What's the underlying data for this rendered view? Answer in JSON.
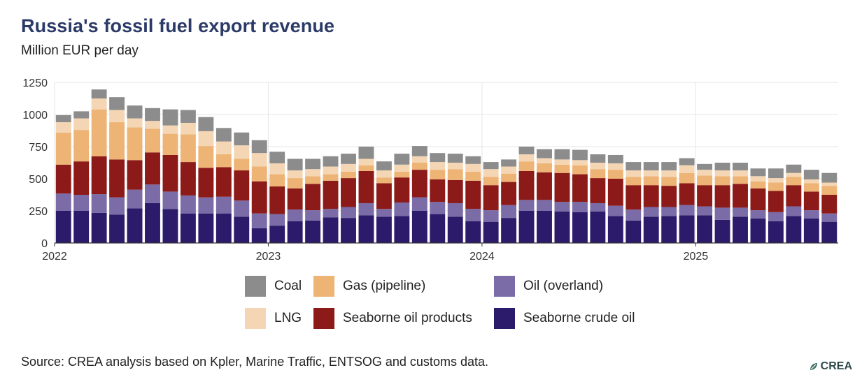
{
  "title": "Russia's fossil fuel export revenue",
  "subtitle": "Million EUR per day",
  "source": "Source: CREA analysis based on Kpler, Marine Traffic, ENTSOG and customs data.",
  "logo_text": "CREA",
  "colors": {
    "coal": "#8c8c8c",
    "lng": "#f5d6b4",
    "gas_pipeline": "#edb476",
    "seaborne_oil_products": "#8b1a18",
    "oil_overland": "#7b6ba6",
    "seaborne_crude_oil": "#2c1a6b",
    "grid": "#e6e6e6",
    "axis": "#333333",
    "title": "#2b3a67"
  },
  "legend": [
    {
      "key": "coal",
      "label": "Coal",
      "color": "#8c8c8c"
    },
    {
      "key": "gas_pipeline",
      "label": "Gas (pipeline)",
      "color": "#edb476"
    },
    {
      "key": "oil_overland",
      "label": "Oil (overland)",
      "color": "#7b6ba6"
    },
    {
      "key": "lng",
      "label": "LNG",
      "color": "#f5d6b4"
    },
    {
      "key": "seaborne_oil_products",
      "label": "Seaborne oil products",
      "color": "#8b1a18"
    },
    {
      "key": "seaborne_crude_oil",
      "label": "Seaborne crude oil",
      "color": "#2c1a6b"
    }
  ],
  "chart_data": {
    "type": "bar",
    "stacked": true,
    "title": "Russia's fossil fuel export revenue",
    "ylabel": "Million EUR per day",
    "ylim": [
      0,
      1250
    ],
    "yticks": [
      0,
      250,
      500,
      750,
      1000,
      1250
    ],
    "xtick_labels": [
      "2022",
      "2023",
      "2024",
      "2025"
    ],
    "xtick_category_index": [
      0,
      12,
      24,
      36
    ],
    "grid": true,
    "legend_position": "bottom",
    "categories": [
      "2022-01",
      "2022-02",
      "2022-03",
      "2022-04",
      "2022-05",
      "2022-06",
      "2022-07",
      "2022-08",
      "2022-09",
      "2022-10",
      "2022-11",
      "2022-12",
      "2023-01",
      "2023-02",
      "2023-03",
      "2023-04",
      "2023-05",
      "2023-06",
      "2023-07",
      "2023-08",
      "2023-09",
      "2023-10",
      "2023-11",
      "2023-12",
      "2024-01",
      "2024-02",
      "2024-03",
      "2024-04",
      "2024-05",
      "2024-06",
      "2024-07",
      "2024-08",
      "2024-09",
      "2024-10",
      "2024-11",
      "2024-12",
      "2025-01",
      "2025-02",
      "2025-03",
      "2025-04",
      "2025-05",
      "2025-06",
      "2025-07",
      "2025-08"
    ],
    "series": [
      {
        "name": "Seaborne crude oil",
        "key": "seaborne_crude_oil",
        "values": [
          250,
          250,
          235,
          220,
          270,
          310,
          265,
          230,
          230,
          230,
          205,
          115,
          135,
          170,
          175,
          200,
          195,
          215,
          205,
          210,
          250,
          225,
          205,
          170,
          165,
          195,
          250,
          250,
          245,
          240,
          245,
          210,
          175,
          205,
          210,
          215,
          215,
          180,
          205,
          190,
          170,
          210,
          190,
          165
        ]
      },
      {
        "name": "Oil (overland)",
        "key": "oil_overland",
        "values": [
          135,
          125,
          145,
          135,
          145,
          145,
          135,
          140,
          125,
          130,
          125,
          115,
          90,
          90,
          80,
          65,
          85,
          95,
          60,
          105,
          105,
          95,
          105,
          95,
          90,
          100,
          85,
          85,
          75,
          80,
          65,
          80,
          85,
          75,
          70,
          80,
          70,
          95,
          70,
          65,
          70,
          75,
          65,
          65
        ]
      },
      {
        "name": "Seaborne oil products",
        "key": "seaborne_oil_products",
        "values": [
          225,
          260,
          295,
          295,
          230,
          250,
          285,
          260,
          230,
          230,
          235,
          250,
          215,
          165,
          205,
          220,
          225,
          250,
          200,
          195,
          215,
          175,
          180,
          220,
          195,
          180,
          225,
          215,
          225,
          215,
          195,
          210,
          190,
          170,
          165,
          170,
          165,
          175,
          185,
          170,
          165,
          165,
          145,
          145
        ]
      },
      {
        "name": "Gas (pipeline)",
        "key": "gas_pipeline",
        "values": [
          250,
          245,
          365,
          290,
          255,
          185,
          165,
          215,
          170,
          100,
          90,
          115,
          95,
          80,
          60,
          50,
          50,
          45,
          45,
          45,
          55,
          75,
          85,
          70,
          65,
          65,
          75,
          70,
          65,
          70,
          70,
          70,
          65,
          70,
          70,
          80,
          75,
          70,
          60,
          55,
          65,
          65,
          65,
          70
        ]
      },
      {
        "name": "LNG",
        "key": "lng",
        "values": [
          80,
          90,
          85,
          95,
          70,
          60,
          65,
          90,
          115,
          100,
          105,
          105,
          85,
          60,
          55,
          60,
          60,
          50,
          55,
          55,
          50,
          60,
          50,
          60,
          60,
          55,
          55,
          40,
          40,
          40,
          50,
          50,
          50,
          45,
          50,
          60,
          45,
          45,
          45,
          40,
          35,
          30,
          30,
          25
        ]
      },
      {
        "name": "Coal",
        "key": "coal",
        "values": [
          55,
          55,
          70,
          100,
          100,
          100,
          125,
          100,
          110,
          105,
          100,
          100,
          90,
          90,
          80,
          80,
          80,
          95,
          70,
          85,
          80,
          70,
          70,
          60,
          55,
          55,
          60,
          70,
          80,
          80,
          65,
          65,
          65,
          65,
          65,
          55,
          45,
          60,
          60,
          60,
          75,
          65,
          75,
          75
        ]
      }
    ]
  }
}
